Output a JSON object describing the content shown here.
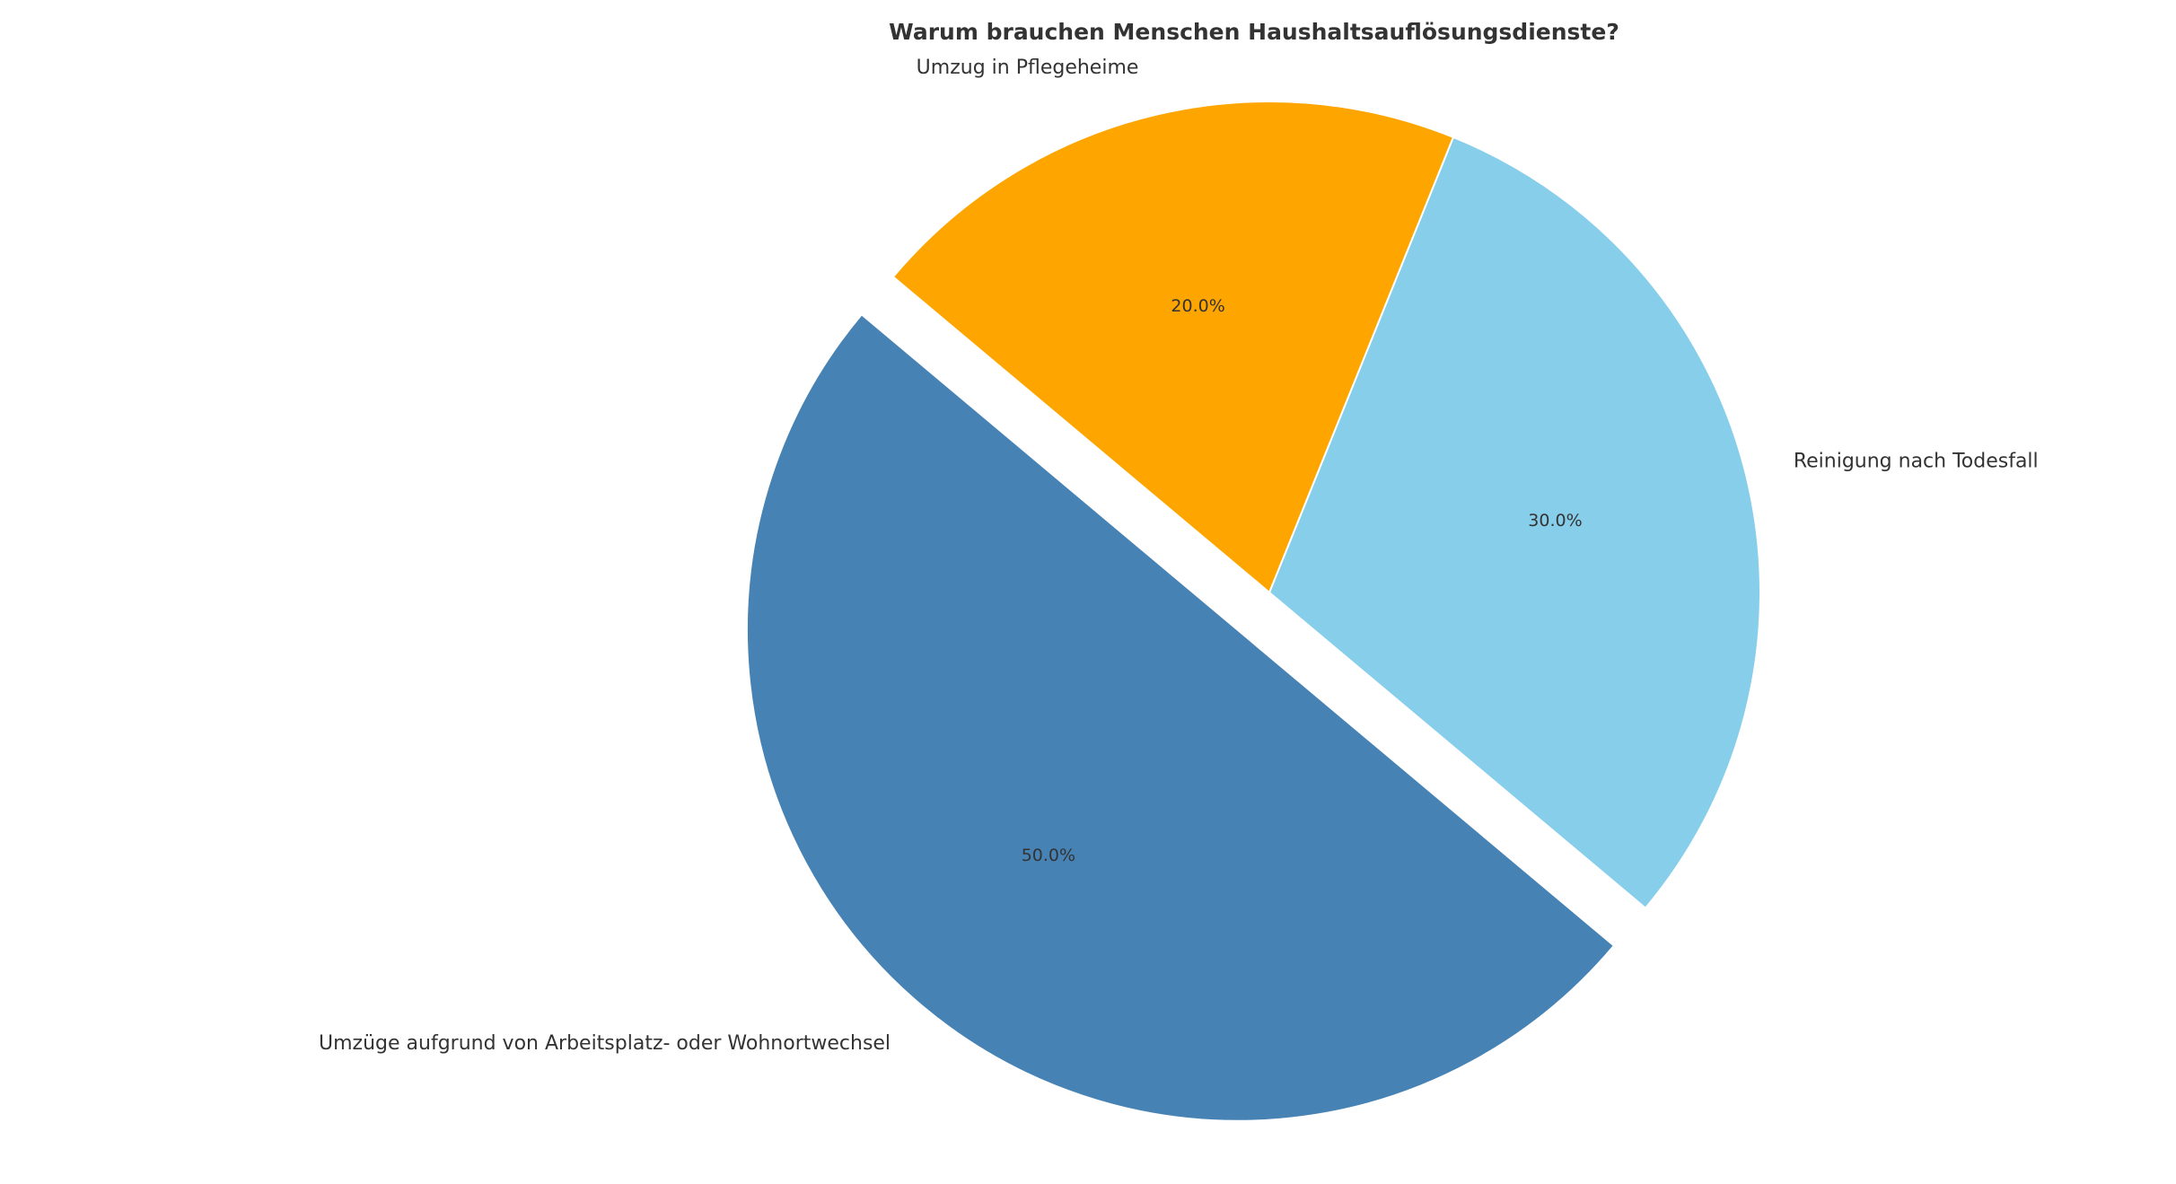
{
  "chart_data": {
    "type": "pie",
    "title": "Warum brauchen Menschen Haushaltsauflösungsdienste?",
    "categories": [
      "Umzüge aufgrund von Arbeitsplatz- oder Wohnortwechsel",
      "Reinigung nach Todesfall",
      "Umzug in Pflegeheime"
    ],
    "values": [
      50,
      30,
      20
    ],
    "value_labels": [
      "50.0%",
      "30.0%",
      "20.0%"
    ],
    "colors": [
      "#4682b4",
      "#87ceeb",
      "#ffa500"
    ]
  }
}
